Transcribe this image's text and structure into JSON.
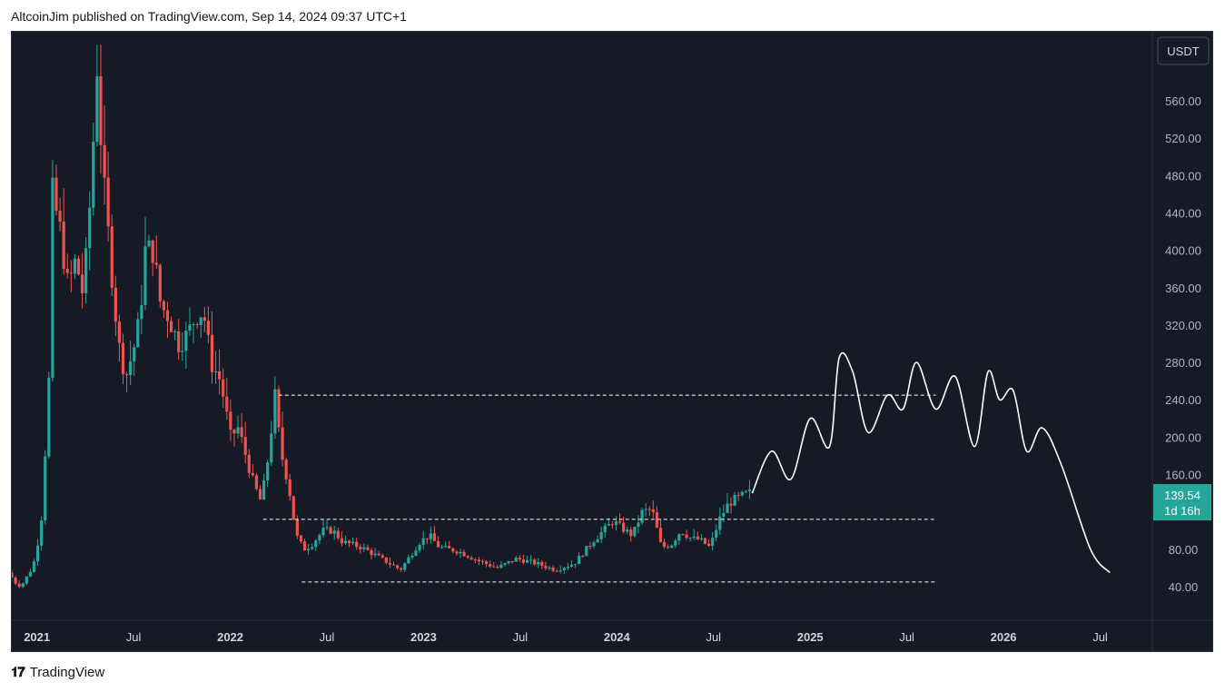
{
  "header": {
    "publisher": "AltcoinJim published on TradingView.com, Sep 14, 2024 09:37 UTC+1"
  },
  "footer": {
    "brand": "TradingView"
  },
  "chart_data": {
    "type": "candlestick",
    "currency": "USDT",
    "colors": {
      "up": "#26a69a",
      "down": "#ef5350",
      "background": "#161a25",
      "projection": "#ffffff",
      "last_price_bg": "#26a69a"
    },
    "y_ticks": [
      "40.00",
      "80.00",
      "160.00",
      "200.00",
      "240.00",
      "280.00",
      "320.00",
      "360.00",
      "400.00",
      "440.00",
      "480.00",
      "520.00",
      "560.00"
    ],
    "x_ticks": [
      {
        "label": "2021",
        "year": 2021.0,
        "bold": true
      },
      {
        "label": "Jul",
        "year": 2021.5,
        "bold": false
      },
      {
        "label": "2022",
        "year": 2022.0,
        "bold": true
      },
      {
        "label": "Jul",
        "year": 2022.5,
        "bold": false
      },
      {
        "label": "2023",
        "year": 2023.0,
        "bold": true
      },
      {
        "label": "Jul",
        "year": 2023.5,
        "bold": false
      },
      {
        "label": "2024",
        "year": 2024.0,
        "bold": true
      },
      {
        "label": "Jul",
        "year": 2024.5,
        "bold": false
      },
      {
        "label": "2025",
        "year": 2025.0,
        "bold": true
      },
      {
        "label": "Jul",
        "year": 2025.5,
        "bold": false
      },
      {
        "label": "2026",
        "year": 2026.0,
        "bold": true
      },
      {
        "label": "Jul",
        "year": 2026.5,
        "bold": false
      }
    ],
    "x_range": [
      2020.87,
      2026.77
    ],
    "y_range": [
      0,
      620
    ],
    "last_price": {
      "value": "139.54",
      "countdown": "1d 16h"
    },
    "key_path": [
      [
        2020.87,
        55
      ],
      [
        2020.93,
        38
      ],
      [
        2021.0,
        62
      ],
      [
        2021.04,
        105
      ],
      [
        2021.08,
        250
      ],
      [
        2021.1,
        460
      ],
      [
        2021.14,
        420
      ],
      [
        2021.18,
        360
      ],
      [
        2021.22,
        390
      ],
      [
        2021.26,
        350
      ],
      [
        2021.3,
        470
      ],
      [
        2021.33,
        600
      ],
      [
        2021.36,
        480
      ],
      [
        2021.4,
        390
      ],
      [
        2021.44,
        300
      ],
      [
        2021.48,
        265
      ],
      [
        2021.52,
        295
      ],
      [
        2021.55,
        325
      ],
      [
        2021.58,
        400
      ],
      [
        2021.62,
        400
      ],
      [
        2021.66,
        340
      ],
      [
        2021.7,
        330
      ],
      [
        2021.75,
        300
      ],
      [
        2021.8,
        310
      ],
      [
        2021.84,
        330
      ],
      [
        2021.88,
        335
      ],
      [
        2021.92,
        280
      ],
      [
        2021.97,
        260
      ],
      [
        2022.02,
        200
      ],
      [
        2022.06,
        210
      ],
      [
        2022.1,
        180
      ],
      [
        2022.14,
        150
      ],
      [
        2022.18,
        130
      ],
      [
        2022.22,
        185
      ],
      [
        2022.25,
        245
      ],
      [
        2022.28,
        185
      ],
      [
        2022.32,
        150
      ],
      [
        2022.36,
        95
      ],
      [
        2022.4,
        80
      ],
      [
        2022.44,
        85
      ],
      [
        2022.5,
        100
      ],
      [
        2022.55,
        100
      ],
      [
        2022.6,
        88
      ],
      [
        2022.7,
        82
      ],
      [
        2022.8,
        70
      ],
      [
        2022.9,
        58
      ],
      [
        2023.0,
        88
      ],
      [
        2023.05,
        95
      ],
      [
        2023.1,
        82
      ],
      [
        2023.2,
        78
      ],
      [
        2023.3,
        68
      ],
      [
        2023.4,
        60
      ],
      [
        2023.5,
        70
      ],
      [
        2023.6,
        65
      ],
      [
        2023.7,
        58
      ],
      [
        2023.8,
        65
      ],
      [
        2023.9,
        90
      ],
      [
        2024.0,
        110
      ],
      [
        2024.05,
        102
      ],
      [
        2024.1,
        95
      ],
      [
        2024.15,
        120
      ],
      [
        2024.2,
        123
      ],
      [
        2024.25,
        82
      ],
      [
        2024.3,
        85
      ],
      [
        2024.35,
        100
      ],
      [
        2024.4,
        92
      ],
      [
        2024.45,
        90
      ],
      [
        2024.5,
        82
      ],
      [
        2024.55,
        112
      ],
      [
        2024.6,
        130
      ],
      [
        2024.65,
        135
      ],
      [
        2024.7,
        140
      ]
    ],
    "levels": [
      {
        "value": 245,
        "x_start": 2022.25,
        "x_end": 2025.65
      },
      {
        "value": 112,
        "x_start": 2022.17,
        "x_end": 2025.65
      },
      {
        "value": 45,
        "x_start": 2022.37,
        "x_end": 2025.65
      }
    ],
    "projection": [
      [
        2024.7,
        140
      ],
      [
        2024.8,
        185
      ],
      [
        2024.9,
        155
      ],
      [
        2025.0,
        220
      ],
      [
        2025.1,
        190
      ],
      [
        2025.15,
        285
      ],
      [
        2025.22,
        270
      ],
      [
        2025.3,
        205
      ],
      [
        2025.4,
        245
      ],
      [
        2025.48,
        230
      ],
      [
        2025.55,
        280
      ],
      [
        2025.65,
        230
      ],
      [
        2025.75,
        265
      ],
      [
        2025.85,
        190
      ],
      [
        2025.92,
        270
      ],
      [
        2025.98,
        240
      ],
      [
        2026.05,
        250
      ],
      [
        2026.12,
        185
      ],
      [
        2026.2,
        210
      ],
      [
        2026.3,
        170
      ],
      [
        2026.45,
        80
      ],
      [
        2026.55,
        55
      ]
    ]
  }
}
